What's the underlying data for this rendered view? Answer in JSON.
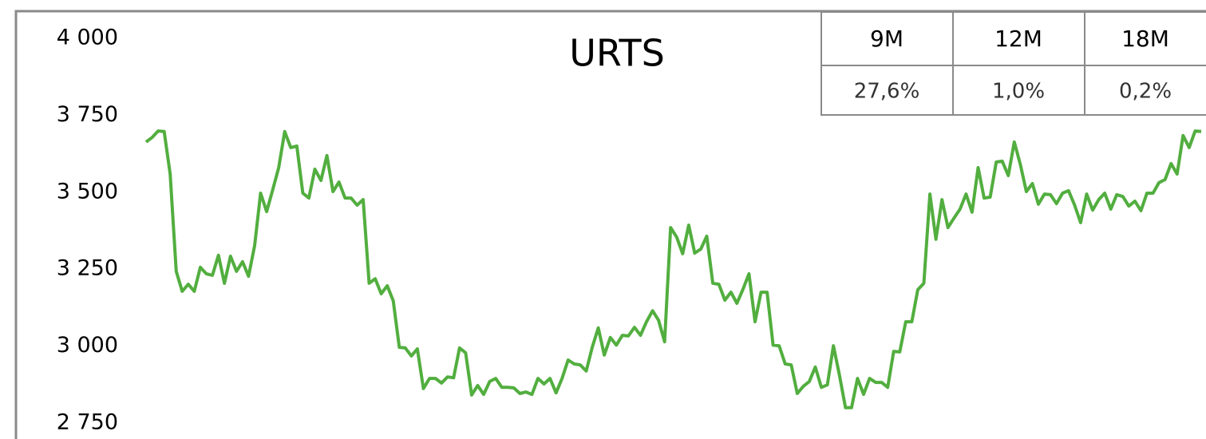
{
  "chart_data": {
    "type": "line",
    "title": "URTS",
    "series": [
      {
        "color": "#52ae3f",
        "values": [
          3663,
          3678,
          3699,
          3697,
          3559,
          3243,
          3178,
          3201,
          3178,
          3256,
          3235,
          3230,
          3295,
          3204,
          3292,
          3243,
          3274,
          3227,
          3326,
          3497,
          3437,
          3507,
          3580,
          3697,
          3645,
          3650,
          3497,
          3481,
          3575,
          3538,
          3619,
          3502,
          3533,
          3481,
          3481,
          3458,
          3476,
          3204,
          3219,
          3170,
          3196,
          3147,
          2996,
          2994,
          2968,
          2991,
          2862,
          2895,
          2895,
          2880,
          2900,
          2897,
          2994,
          2978,
          2841,
          2872,
          2843,
          2885,
          2895,
          2866,
          2866,
          2864,
          2846,
          2851,
          2843,
          2895,
          2877,
          2895,
          2848,
          2895,
          2955,
          2942,
          2939,
          2919,
          2996,
          3059,
          2971,
          3028,
          3003,
          3035,
          3033,
          3061,
          3035,
          3079,
          3115,
          3084,
          3014,
          3385,
          3354,
          3300,
          3393,
          3302,
          3315,
          3357,
          3204,
          3201,
          3149,
          3175,
          3139,
          3185,
          3235,
          3079,
          3175,
          3175,
          3003,
          3001,
          2942,
          2939,
          2846,
          2869,
          2885,
          2932,
          2866,
          2874,
          3001,
          2906,
          2800,
          2800,
          2895,
          2843,
          2895,
          2882,
          2882,
          2866,
          2983,
          2981,
          3079,
          3079,
          3183,
          3204,
          3494,
          3347,
          3476,
          3385,
          3416,
          3445,
          3494,
          3435,
          3580,
          3481,
          3484,
          3598,
          3601,
          3554,
          3663,
          3590,
          3502,
          3528,
          3461,
          3494,
          3492,
          3463,
          3497,
          3505,
          3458,
          3401,
          3494,
          3442,
          3476,
          3497,
          3445,
          3492,
          3486,
          3455,
          3471,
          3440,
          3497,
          3497,
          3531,
          3541,
          3593,
          3559,
          3684,
          3645,
          3699,
          3697
        ]
      }
    ],
    "ylim": [
      2750,
      4000
    ],
    "yticks": [
      {
        "value": 4000,
        "label": "4 000"
      },
      {
        "value": 3750,
        "label": "3 750"
      },
      {
        "value": 3500,
        "label": "3 500"
      },
      {
        "value": 3250,
        "label": "3 250"
      },
      {
        "value": 3000,
        "label": "3 000"
      },
      {
        "value": 2750,
        "label": "2 750"
      }
    ]
  },
  "table": {
    "headers": [
      "9M",
      "12M",
      "18M"
    ],
    "values": [
      "27,6%",
      "1,0%",
      "0,2%"
    ]
  }
}
